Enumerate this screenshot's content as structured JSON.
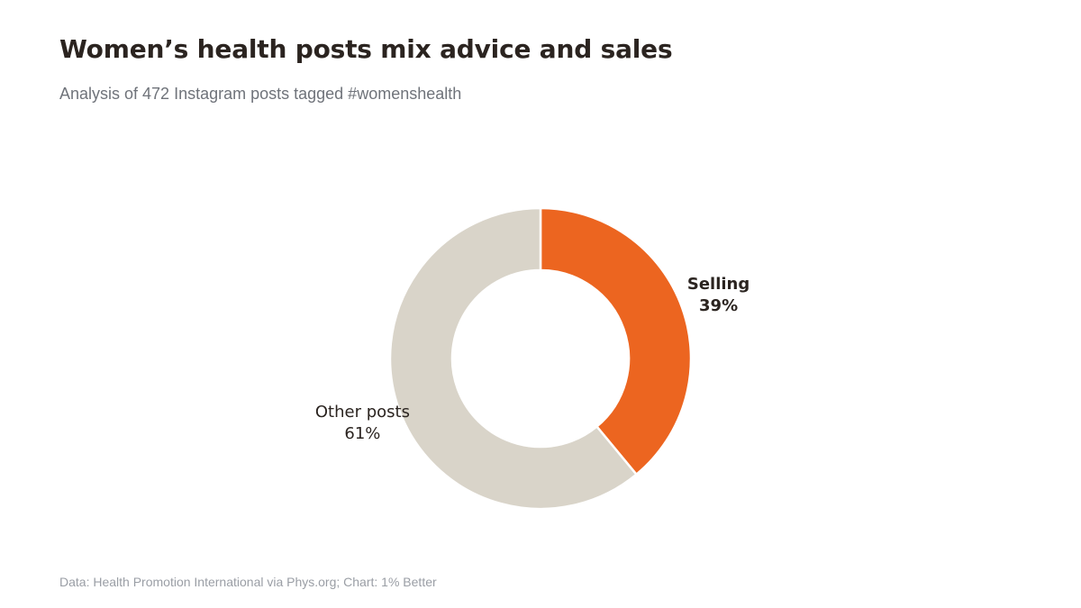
{
  "header": {
    "title": "Women’s health posts mix advice and sales",
    "subtitle": "Analysis of 472 Instagram posts tagged #womenshealth"
  },
  "footer": {
    "source": "Data: Health Promotion International via Phys.org; Chart: 1% Better"
  },
  "chart_data": {
    "type": "pie",
    "donut": true,
    "title": "Women’s health posts mix advice and sales",
    "subtitle": "Analysis of 472 Instagram posts tagged #womenshealth",
    "slices": [
      {
        "label": "Selling",
        "value": 39,
        "value_label": "39%",
        "color": "#ec6520",
        "emphasis": true
      },
      {
        "label": "Other posts",
        "value": 61,
        "value_label": "61%",
        "color": "#d9d4c9",
        "emphasis": false
      }
    ],
    "legend": "none"
  }
}
